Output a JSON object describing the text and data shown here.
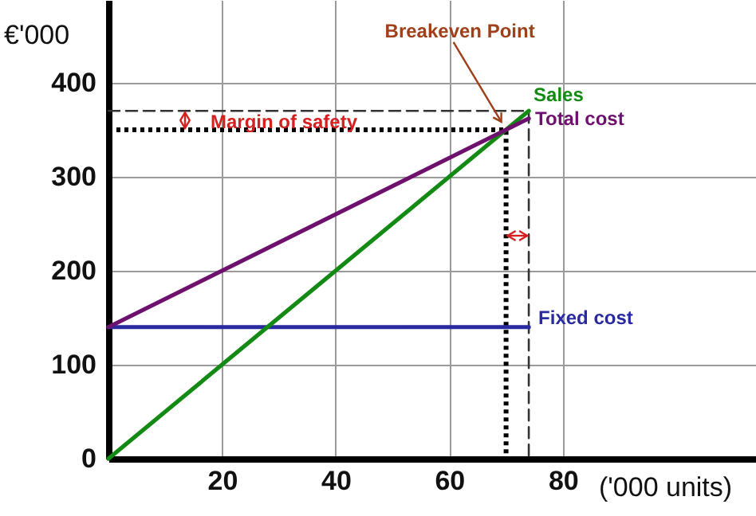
{
  "chart_data": {
    "type": "line",
    "xlabel": "('000 units)",
    "ylabel": "€'000",
    "xlim": [
      0,
      114
    ],
    "ylim": [
      0,
      488
    ],
    "xticks": [
      20,
      40,
      60,
      80
    ],
    "yticks": [
      0,
      100,
      200,
      300,
      400
    ],
    "grid": true,
    "marker": "none",
    "series": [
      {
        "name": "Sales",
        "color": "#138a13",
        "x": [
          0,
          74
        ],
        "values": [
          0,
          370
        ]
      },
      {
        "name": "Total cost",
        "color": "#6e106e",
        "x": [
          0,
          74
        ],
        "values": [
          140,
          362
        ]
      },
      {
        "name": "Fixed cost",
        "color": "#2a2aa0",
        "x": [
          0,
          74
        ],
        "values": [
          140,
          140
        ]
      },
      {
        "color": "#000000",
        "line_style": "dotted",
        "x": [
          0,
          70,
          70
        ],
        "values": [
          350,
          350,
          0
        ]
      },
      {
        "color": "#333333",
        "line_style": "dashed",
        "x": [
          0,
          74,
          74
        ],
        "values": [
          370,
          370,
          0
        ]
      }
    ],
    "annotations": [
      {
        "text": "Breakeven Point",
        "x": 70,
        "y": 350
      },
      "Margin of safety"
    ]
  }
}
